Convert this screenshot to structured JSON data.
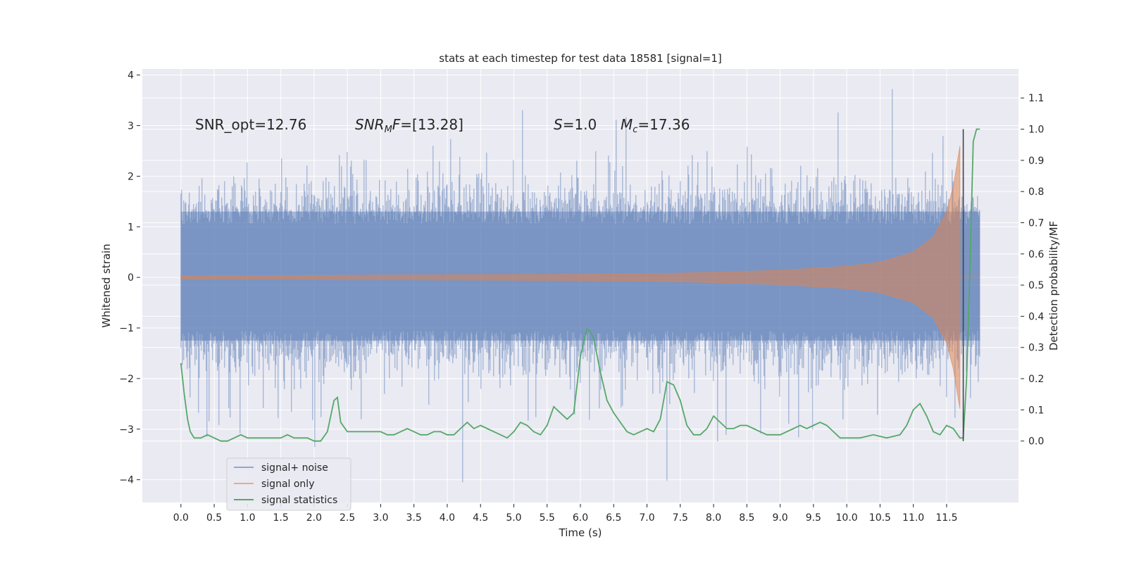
{
  "chart_data": {
    "type": "line",
    "title": "stats at each timestep for test data 18581 [signal=1]",
    "xlabel": "Time (s)",
    "ylabel": "Whitened strain",
    "y2label": "Detection probability/MF",
    "xlim": [
      -0.58,
      12.58
    ],
    "ylim": [
      -4.45,
      4.12
    ],
    "y2lim": [
      -0.197,
      1.193
    ],
    "x_ticks": [
      "0.0",
      "0.5",
      "1.0",
      "1.5",
      "2.0",
      "2.5",
      "3.0",
      "3.5",
      "4.0",
      "4.5",
      "5.0",
      "5.5",
      "6.0",
      "6.5",
      "7.0",
      "7.5",
      "8.0",
      "8.5",
      "9.0",
      "9.5",
      "10.0",
      "10.5",
      "11.0",
      "11.5"
    ],
    "y_ticks": [
      "−4",
      "−3",
      "−2",
      "−1",
      "0",
      "1",
      "2",
      "3",
      "4"
    ],
    "y2_ticks": [
      "0.0",
      "0.1",
      "0.2",
      "0.3",
      "0.4",
      "0.5",
      "0.6",
      "0.7",
      "0.8",
      "0.9",
      "1.0",
      "1.1"
    ],
    "grid": true,
    "legend_position": "lower-left",
    "annotations": [
      "SNR_opt=12.76",
      "SNR_{M}F=[13.28]",
      "S=1.0",
      "M_{c}=17.36"
    ],
    "colors": {
      "background": "#eaeaf2",
      "grid": "#ffffff",
      "noise": "#4c72b0",
      "signal": "#dd8452",
      "stats": "#55a868",
      "marker": "#444444"
    },
    "series": [
      {
        "name": "signal+ noise",
        "axis": "left",
        "description_range": "noisy whitened strain spanning 0 to 12 s",
        "x_range": [
          0.0,
          12.0
        ],
        "typical_band": [
          -2.2,
          2.3
        ],
        "peak_max": 3.75,
        "peak_min": -4.1
      },
      {
        "name": "signal only",
        "axis": "left",
        "x_range": [
          0.0,
          12.0
        ],
        "merger_time": 11.7,
        "envelope": [
          [
            0.0,
            0.03
          ],
          [
            2.0,
            0.04
          ],
          [
            4.0,
            0.05
          ],
          [
            6.0,
            0.06
          ],
          [
            7.0,
            0.07
          ],
          [
            8.0,
            0.1
          ],
          [
            9.0,
            0.14
          ],
          [
            10.0,
            0.22
          ],
          [
            10.5,
            0.3
          ],
          [
            11.0,
            0.5
          ],
          [
            11.3,
            0.8
          ],
          [
            11.5,
            1.3
          ],
          [
            11.6,
            1.8
          ],
          [
            11.65,
            2.2
          ],
          [
            11.7,
            2.6
          ]
        ]
      },
      {
        "name": "signal statistics",
        "axis": "right",
        "x": [
          0.0,
          0.05,
          0.1,
          0.14,
          0.2,
          0.3,
          0.4,
          0.5,
          0.6,
          0.7,
          0.8,
          0.9,
          1.0,
          1.1,
          1.2,
          1.3,
          1.4,
          1.5,
          1.6,
          1.7,
          1.8,
          1.9,
          2.0,
          2.1,
          2.2,
          2.3,
          2.35,
          2.4,
          2.5,
          2.6,
          2.7,
          2.8,
          2.9,
          3.0,
          3.1,
          3.2,
          3.3,
          3.4,
          3.5,
          3.6,
          3.7,
          3.8,
          3.9,
          4.0,
          4.1,
          4.2,
          4.3,
          4.4,
          4.5,
          4.6,
          4.7,
          4.8,
          4.9,
          5.0,
          5.1,
          5.2,
          5.3,
          5.4,
          5.5,
          5.6,
          5.7,
          5.8,
          5.9,
          6.0,
          6.05,
          6.1,
          6.15,
          6.2,
          6.3,
          6.4,
          6.5,
          6.6,
          6.7,
          6.8,
          6.9,
          7.0,
          7.1,
          7.2,
          7.3,
          7.4,
          7.5,
          7.6,
          7.7,
          7.8,
          7.9,
          8.0,
          8.1,
          8.2,
          8.3,
          8.4,
          8.5,
          8.6,
          8.7,
          8.8,
          8.9,
          9.0,
          9.1,
          9.2,
          9.3,
          9.4,
          9.5,
          9.6,
          9.7,
          9.8,
          9.9,
          10.0,
          10.2,
          10.4,
          10.6,
          10.8,
          10.9,
          11.0,
          11.1,
          11.2,
          11.3,
          11.4,
          11.5,
          11.6,
          11.7,
          11.75,
          11.8,
          11.85,
          11.9,
          11.95,
          12.0
        ],
        "values": [
          0.25,
          0.15,
          0.07,
          0.03,
          0.01,
          0.01,
          0.02,
          0.01,
          0.0,
          0.0,
          0.01,
          0.02,
          0.01,
          0.01,
          0.01,
          0.01,
          0.01,
          0.01,
          0.02,
          0.01,
          0.01,
          0.01,
          0.0,
          0.0,
          0.03,
          0.13,
          0.14,
          0.06,
          0.03,
          0.03,
          0.03,
          0.03,
          0.03,
          0.03,
          0.02,
          0.02,
          0.03,
          0.04,
          0.03,
          0.02,
          0.02,
          0.03,
          0.03,
          0.02,
          0.02,
          0.04,
          0.06,
          0.04,
          0.05,
          0.04,
          0.03,
          0.02,
          0.01,
          0.03,
          0.06,
          0.05,
          0.03,
          0.02,
          0.05,
          0.11,
          0.09,
          0.07,
          0.09,
          0.27,
          0.32,
          0.36,
          0.35,
          0.33,
          0.22,
          0.13,
          0.09,
          0.06,
          0.03,
          0.02,
          0.03,
          0.04,
          0.03,
          0.07,
          0.19,
          0.18,
          0.13,
          0.05,
          0.02,
          0.02,
          0.04,
          0.08,
          0.06,
          0.04,
          0.04,
          0.05,
          0.05,
          0.04,
          0.03,
          0.02,
          0.02,
          0.02,
          0.03,
          0.04,
          0.05,
          0.04,
          0.05,
          0.06,
          0.05,
          0.03,
          0.01,
          0.01,
          0.01,
          0.02,
          0.01,
          0.02,
          0.05,
          0.1,
          0.12,
          0.08,
          0.03,
          0.02,
          0.05,
          0.04,
          0.01,
          0.01,
          0.2,
          0.55,
          0.96,
          1.0,
          1.0
        ]
      }
    ],
    "marker_line": {
      "x": 11.75,
      "y2_range": [
        0.0,
        1.0
      ]
    }
  },
  "legend": {
    "items": [
      {
        "label": "signal+ noise",
        "color": "#4c72b0"
      },
      {
        "label": "signal only",
        "color": "#dd8452"
      },
      {
        "label": "signal statistics",
        "color": "#55a868"
      }
    ]
  }
}
